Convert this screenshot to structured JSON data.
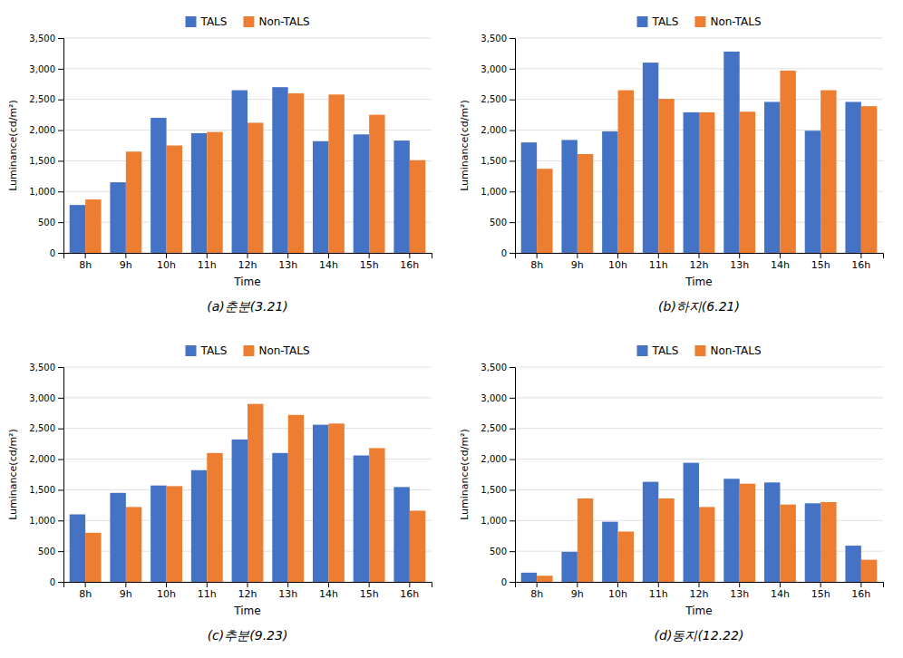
{
  "chart_data": [
    {
      "type": "bar",
      "title": "(a)춘분(3.21)",
      "xlabel": "Time",
      "ylabel": "Luminance(cd/m²)",
      "categories": [
        "8h",
        "9h",
        "10h",
        "11h",
        "12h",
        "13h",
        "14h",
        "15h",
        "16h"
      ],
      "series": [
        {
          "name": "TALS",
          "color": "#4472C4",
          "values": [
            780,
            1150,
            2200,
            1950,
            2650,
            2700,
            1820,
            1930,
            1830
          ]
        },
        {
          "name": "Non-TALS",
          "color": "#ED7D31",
          "values": [
            870,
            1650,
            1750,
            1970,
            2120,
            2600,
            2580,
            2250,
            1510
          ]
        }
      ],
      "ylim": [
        0,
        3500
      ],
      "yticks": [
        0,
        500,
        {
          "value": 1000,
          "label": "1,000"
        },
        {
          "value": 1500,
          "label": "1,500"
        },
        {
          "value": 2000,
          "label": "2,000"
        },
        {
          "value": 2500,
          "label": "2,500"
        },
        {
          "value": 3000,
          "label": "3,000"
        },
        {
          "value": 3500,
          "label": "3,500"
        }
      ],
      "grid": true,
      "legend": "top"
    },
    {
      "type": "bar",
      "title": "(b)하지(6.21)",
      "xlabel": "Time",
      "ylabel": "Luminance(cd/m²)",
      "categories": [
        "8h",
        "9h",
        "10h",
        "11h",
        "12h",
        "13h",
        "14h",
        "15h",
        "16h"
      ],
      "series": [
        {
          "name": "TALS",
          "color": "#4472C4",
          "values": [
            1800,
            1840,
            1980,
            3100,
            2290,
            3280,
            2460,
            1990,
            2460
          ]
        },
        {
          "name": "Non-TALS",
          "color": "#ED7D31",
          "values": [
            1370,
            1610,
            2650,
            2510,
            2290,
            2300,
            2970,
            2650,
            2390
          ]
        }
      ],
      "ylim": [
        0,
        3500
      ],
      "yticks": [
        0,
        500,
        {
          "value": 1000,
          "label": "1,000"
        },
        {
          "value": 1500,
          "label": "1,500"
        },
        {
          "value": 2000,
          "label": "2,000"
        },
        {
          "value": 2500,
          "label": "2,500"
        },
        {
          "value": 3000,
          "label": "3,000"
        },
        {
          "value": 3500,
          "label": "3,500"
        }
      ],
      "grid": true,
      "legend": "top"
    },
    {
      "type": "bar",
      "title": "(c)추분(9.23)",
      "xlabel": "Time",
      "ylabel": "Luminance(cd/m²)",
      "categories": [
        "8h",
        "9h",
        "10h",
        "11h",
        "12h",
        "13h",
        "14h",
        "15h",
        "16h"
      ],
      "series": [
        {
          "name": "TALS",
          "color": "#4472C4",
          "values": [
            1100,
            1450,
            1570,
            1820,
            2320,
            2100,
            2560,
            2060,
            1545
          ]
        },
        {
          "name": "Non-TALS",
          "color": "#ED7D31",
          "values": [
            800,
            1220,
            1560,
            2100,
            2900,
            2720,
            2580,
            2180,
            1160
          ]
        }
      ],
      "ylim": [
        0,
        3500
      ],
      "yticks": [
        0,
        500,
        {
          "value": 1000,
          "label": "1,000"
        },
        {
          "value": 1500,
          "label": "1,500"
        },
        {
          "value": 2000,
          "label": "2,000"
        },
        {
          "value": 2500,
          "label": "2,500"
        },
        {
          "value": 3000,
          "label": "3,000"
        },
        {
          "value": 3500,
          "label": "3,500"
        }
      ],
      "grid": true,
      "legend": "top"
    },
    {
      "type": "bar",
      "title": "(d)동지(12.22)",
      "xlabel": "Time",
      "ylabel": "Luminance(cd/m²)",
      "categories": [
        "8h",
        "9h",
        "10h",
        "11h",
        "12h",
        "13h",
        "14h",
        "15h",
        "16h"
      ],
      "series": [
        {
          "name": "TALS",
          "color": "#4472C4",
          "values": [
            150,
            490,
            980,
            1630,
            1940,
            1680,
            1620,
            1280,
            590
          ]
        },
        {
          "name": "Non-TALS",
          "color": "#ED7D31",
          "values": [
            100,
            1360,
            820,
            1360,
            1220,
            1600,
            1260,
            1300,
            360
          ]
        }
      ],
      "ylim": [
        0,
        3500
      ],
      "yticks": [
        0,
        500,
        {
          "value": 1000,
          "label": "1,000"
        },
        {
          "value": 1500,
          "label": "1,500"
        },
        {
          "value": 2000,
          "label": "2,000"
        },
        {
          "value": 2500,
          "label": "2,500"
        },
        {
          "value": 3000,
          "label": "3,000"
        },
        {
          "value": 3500,
          "label": "3,500"
        }
      ],
      "grid": true,
      "legend": "top"
    }
  ]
}
